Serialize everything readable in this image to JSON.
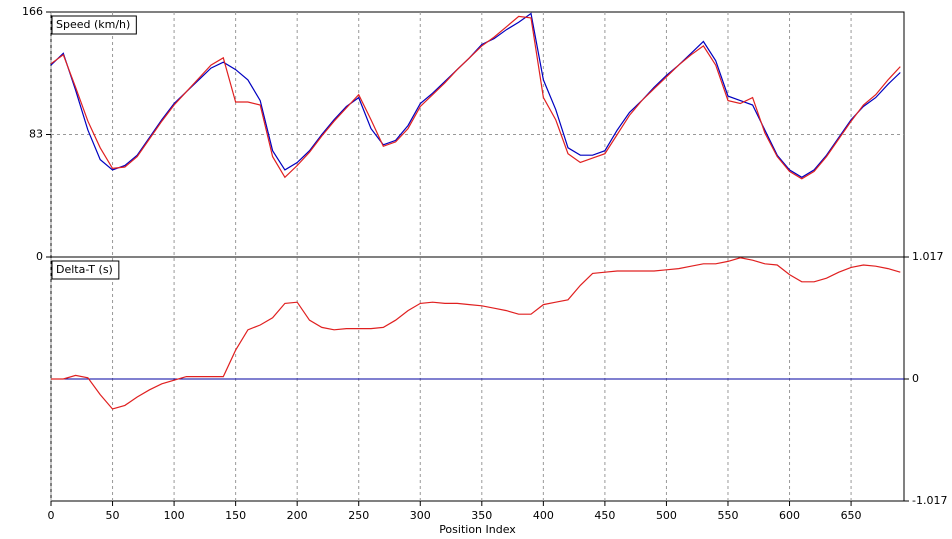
{
  "chart_data": [
    {
      "type": "line",
      "ylabel": "Speed (km/h)",
      "x": [
        0,
        10,
        20,
        30,
        40,
        50,
        60,
        70,
        80,
        90,
        100,
        110,
        120,
        130,
        140,
        150,
        160,
        170,
        180,
        190,
        200,
        210,
        220,
        230,
        240,
        250,
        260,
        270,
        280,
        290,
        300,
        310,
        320,
        330,
        340,
        350,
        360,
        370,
        380,
        390,
        400,
        410,
        420,
        430,
        440,
        450,
        460,
        470,
        480,
        490,
        500,
        510,
        520,
        530,
        540,
        550,
        560,
        570,
        580,
        590,
        600,
        610,
        620,
        630,
        640,
        650,
        660,
        670,
        680,
        690
      ],
      "xlim": [
        0,
        693
      ],
      "ylim": [
        0,
        166
      ],
      "yticks": [
        0,
        83,
        166
      ],
      "grid": true,
      "series": [
        {
          "color": "#0000c0",
          "values": [
            130,
            138,
            113,
            86,
            66,
            59,
            62,
            69,
            81,
            93,
            104,
            112,
            120,
            128,
            132,
            127,
            120,
            106,
            72,
            59,
            64,
            72,
            83,
            93,
            102,
            108,
            87,
            76,
            79,
            89,
            104,
            111,
            119,
            127,
            135,
            144,
            148,
            154,
            159,
            165,
            120,
            100,
            74,
            69,
            69,
            72,
            86,
            98,
            106,
            115,
            123,
            130,
            138,
            146,
            133,
            109,
            106,
            103,
            86,
            69,
            59,
            54,
            59,
            69,
            81,
            93,
            102,
            108,
            117,
            125
          ]
        },
        {
          "color": "#e02020",
          "values": [
            131,
            137,
            115,
            92,
            74,
            60,
            61,
            68,
            80,
            92,
            103,
            112,
            121,
            130,
            135,
            105,
            105,
            103,
            68,
            54,
            62,
            71,
            82,
            92,
            101,
            110,
            93,
            75,
            78,
            87,
            102,
            110,
            118,
            127,
            135,
            143,
            149,
            156,
            163,
            162,
            108,
            93,
            70,
            64,
            67,
            70,
            83,
            96,
            106,
            114,
            122,
            130,
            137,
            143,
            130,
            106,
            104,
            108,
            84,
            68,
            58,
            53,
            58,
            68,
            80,
            92,
            103,
            110,
            120,
            129
          ]
        }
      ]
    },
    {
      "type": "line",
      "ylabel": "Delta-T (s)",
      "xlabel": "Position Index",
      "x": [
        0,
        10,
        20,
        30,
        40,
        50,
        60,
        70,
        80,
        90,
        100,
        110,
        120,
        130,
        140,
        150,
        160,
        170,
        180,
        190,
        200,
        210,
        220,
        230,
        240,
        250,
        260,
        270,
        280,
        290,
        300,
        310,
        320,
        330,
        340,
        350,
        360,
        370,
        380,
        390,
        400,
        410,
        420,
        430,
        440,
        450,
        460,
        470,
        480,
        490,
        500,
        510,
        520,
        530,
        540,
        550,
        560,
        570,
        580,
        590,
        600,
        610,
        620,
        630,
        640,
        650,
        660,
        670,
        680,
        690
      ],
      "xlim": [
        0,
        693
      ],
      "xticks": [
        0,
        50,
        100,
        150,
        200,
        250,
        300,
        350,
        400,
        450,
        500,
        550,
        600,
        650
      ],
      "ylim": [
        -1.017,
        1.017
      ],
      "yticks": [
        -1.017,
        0,
        1.017
      ],
      "zero_line_color": "#0000a0",
      "series": [
        {
          "color": "#e02020",
          "values": [
            0,
            0,
            0.03,
            0.01,
            -0.13,
            -0.25,
            -0.22,
            -0.15,
            -0.09,
            -0.04,
            -0.01,
            0.02,
            0.02,
            0.02,
            0.02,
            0.24,
            0.41,
            0.45,
            0.51,
            0.63,
            0.64,
            0.49,
            0.43,
            0.41,
            0.42,
            0.42,
            0.42,
            0.43,
            0.49,
            0.57,
            0.63,
            0.64,
            0.63,
            0.63,
            0.62,
            0.61,
            0.59,
            0.57,
            0.54,
            0.54,
            0.62,
            0.64,
            0.66,
            0.78,
            0.88,
            0.89,
            0.9,
            0.9,
            0.9,
            0.9,
            0.91,
            0.92,
            0.94,
            0.96,
            0.96,
            0.98,
            1.01,
            0.99,
            0.96,
            0.95,
            0.87,
            0.81,
            0.81,
            0.84,
            0.89,
            0.93,
            0.95,
            0.94,
            0.92,
            0.89
          ]
        }
      ]
    }
  ]
}
